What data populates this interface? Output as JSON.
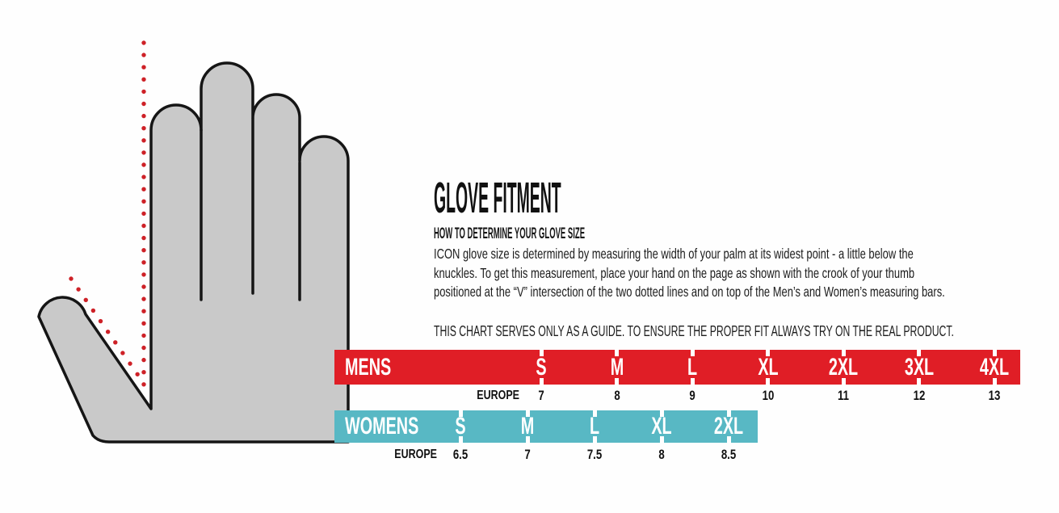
{
  "heading": {
    "title": "GLOVE FITMENT",
    "subtitle": "HOW TO DETERMINE YOUR GLOVE SIZE"
  },
  "intro": {
    "lines": [
      "ICON glove size is determined by measuring the width of your palm at its widest point - a little below the",
      "knuckles. To get this measurement, place your hand on the page as shown with the crook of your thumb",
      "positioned at the “V” intersection of the two dotted lines and on top of the Men’s and Women’s measuring bars."
    ]
  },
  "disclaimer": "THIS CHART SERVES ONLY AS A GUIDE. TO ENSURE THE PROPER FIT ALWAYS TRY ON THE REAL PRODUCT.",
  "illustration": {
    "hand_fill": "#c9c9c9",
    "hand_outline": "#151515",
    "dotted_line_color": "#ce2127"
  },
  "chart_data": {
    "type": "table",
    "title": "GLOVE FITMENT",
    "tables": [
      {
        "label": "MENS",
        "bar_color": "#e01e26",
        "europe_label": "EUROPE",
        "sizes": [
          "S",
          "M",
          "L",
          "XL",
          "2XL",
          "3XL",
          "4XL"
        ],
        "europe_values": [
          "7",
          "8",
          "9",
          "10",
          "11",
          "12",
          "13"
        ]
      },
      {
        "label": "WOMENS",
        "bar_color": "#58b8c4",
        "europe_label": "EUROPE",
        "sizes": [
          "S",
          "M",
          "L",
          "XL",
          "2XL"
        ],
        "europe_values": [
          "6.5",
          "7",
          "7.5",
          "8",
          "8.5"
        ]
      }
    ]
  }
}
